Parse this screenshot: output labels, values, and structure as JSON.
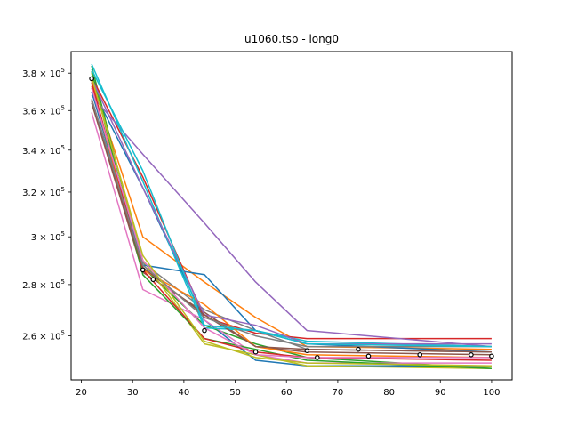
{
  "chart_data": {
    "type": "line",
    "title": "u1060.tsp - long0",
    "xlabel": "",
    "ylabel": "",
    "xlim": [
      18,
      104
    ],
    "ylim": [
      244000,
      392000
    ],
    "y_scale": "log",
    "x_ticks": [
      20,
      30,
      40,
      50,
      60,
      70,
      80,
      90,
      100
    ],
    "x_tick_labels": [
      "20",
      "30",
      "40",
      "50",
      "60",
      "70",
      "80",
      "90",
      "100"
    ],
    "y_ticks": [
      260000,
      280000,
      300000,
      320000,
      340000,
      360000,
      380000
    ],
    "y_tick_labels": [
      {
        "mantissa": "2.6",
        "base": "10",
        "exp": "5"
      },
      {
        "mantissa": "2.8",
        "base": "10",
        "exp": "5"
      },
      {
        "mantissa": "3",
        "base": "10",
        "exp": "5"
      },
      {
        "mantissa": "3.2",
        "base": "10",
        "exp": "5"
      },
      {
        "mantissa": "3.4",
        "base": "10",
        "exp": "5"
      },
      {
        "mantissa": "3.6",
        "base": "10",
        "exp": "5"
      },
      {
        "mantissa": "3.8",
        "base": "10",
        "exp": "5"
      }
    ],
    "grid": false,
    "legend": "none",
    "series": [
      {
        "color": "#1f77b4",
        "x": [
          22,
          32,
          44,
          54,
          64,
          100
        ],
        "y": [
          372000,
          322000,
          266000,
          251000,
          249000,
          249000
        ]
      },
      {
        "color": "#ff7f0e",
        "x": [
          22,
          32,
          44,
          54,
          64,
          100
        ],
        "y": [
          376000,
          300000,
          281000,
          267000,
          256000,
          255000
        ]
      },
      {
        "color": "#2ca02c",
        "x": [
          22,
          32,
          44,
          54,
          64,
          100
        ],
        "y": [
          384000,
          287000,
          264000,
          257000,
          252000,
          248000
        ]
      },
      {
        "color": "#d62728",
        "x": [
          22,
          32,
          44,
          54,
          64,
          100
        ],
        "y": [
          378000,
          327000,
          267000,
          261000,
          259000,
          259000
        ]
      },
      {
        "color": "#9467bd",
        "x": [
          22,
          32,
          44,
          54,
          64,
          100
        ],
        "y": [
          368000,
          338000,
          306000,
          281000,
          262000,
          256000
        ]
      },
      {
        "color": "#8c564b",
        "x": [
          22,
          32,
          44,
          54,
          64,
          100
        ],
        "y": [
          364000,
          285000,
          269000,
          256000,
          254000,
          253000
        ]
      },
      {
        "color": "#e377c2",
        "x": [
          22,
          32,
          44,
          54,
          64,
          100
        ],
        "y": [
          359000,
          278000,
          266000,
          253000,
          250000,
          250000
        ]
      },
      {
        "color": "#7f7f7f",
        "x": [
          22,
          32,
          44,
          54,
          64,
          100
        ],
        "y": [
          366000,
          289000,
          270000,
          262000,
          255000,
          254000
        ]
      },
      {
        "color": "#bcbd22",
        "x": [
          22,
          32,
          44,
          54,
          64,
          100
        ],
        "y": [
          380000,
          290000,
          257000,
          253000,
          249000,
          248000
        ]
      },
      {
        "color": "#17becf",
        "x": [
          22,
          32,
          44,
          54,
          64,
          100
        ],
        "y": [
          385000,
          325000,
          263000,
          262000,
          258000,
          256000
        ]
      },
      {
        "color": "#1f77b4",
        "x": [
          22,
          32,
          44,
          54,
          64,
          100
        ],
        "y": [
          370000,
          288000,
          284000,
          262000,
          257000,
          254000
        ]
      },
      {
        "color": "#ff7f0e",
        "x": [
          22,
          32,
          44,
          54,
          64,
          100
        ],
        "y": [
          373000,
          286000,
          272000,
          256000,
          253000,
          252000
        ]
      },
      {
        "color": "#2ca02c",
        "x": [
          22,
          32,
          44,
          54,
          64,
          100
        ],
        "y": [
          381000,
          284000,
          259000,
          255000,
          251000,
          248000
        ]
      },
      {
        "color": "#d62728",
        "x": [
          22,
          32,
          44,
          54,
          64,
          100
        ],
        "y": [
          375000,
          286000,
          259000,
          254000,
          252000,
          251000
        ]
      },
      {
        "color": "#9467bd",
        "x": [
          22,
          32,
          44,
          54,
          64,
          100
        ],
        "y": [
          377000,
          322000,
          268000,
          264000,
          257000,
          257000
        ]
      },
      {
        "color": "#8c564b",
        "x": [
          22,
          32,
          44,
          54,
          64,
          100
        ],
        "y": [
          365000,
          287000,
          268000,
          256000,
          255000,
          254000
        ]
      },
      {
        "color": "#e377c2",
        "x": [
          22,
          32,
          44,
          54,
          64,
          100
        ],
        "y": [
          372000,
          290000,
          263000,
          253000,
          252000,
          252000
        ]
      },
      {
        "color": "#7f7f7f",
        "x": [
          22,
          32,
          44,
          54,
          64,
          100
        ],
        "y": [
          366000,
          288000,
          267000,
          260000,
          256000,
          256000
        ]
      },
      {
        "color": "#bcbd22",
        "x": [
          22,
          32,
          44,
          54,
          64,
          100
        ],
        "y": [
          378000,
          292000,
          258000,
          252000,
          250000,
          249000
        ]
      },
      {
        "color": "#17becf",
        "x": [
          22,
          32,
          44,
          54,
          64,
          100
        ],
        "y": [
          382000,
          330000,
          264000,
          262000,
          257000,
          256000
        ]
      }
    ],
    "markers": {
      "style": "open-circle",
      "color": "#000000",
      "points": [
        {
          "x": 22,
          "y": 377000
        },
        {
          "x": 32,
          "y": 286000
        },
        {
          "x": 34,
          "y": 282000
        },
        {
          "x": 44,
          "y": 262000
        },
        {
          "x": 54,
          "y": 254000
        },
        {
          "x": 64,
          "y": 254500
        },
        {
          "x": 66,
          "y": 252000
        },
        {
          "x": 74,
          "y": 255000
        },
        {
          "x": 76,
          "y": 252500
        },
        {
          "x": 86,
          "y": 253000
        },
        {
          "x": 96,
          "y": 253000
        },
        {
          "x": 100,
          "y": 252500
        }
      ]
    }
  }
}
